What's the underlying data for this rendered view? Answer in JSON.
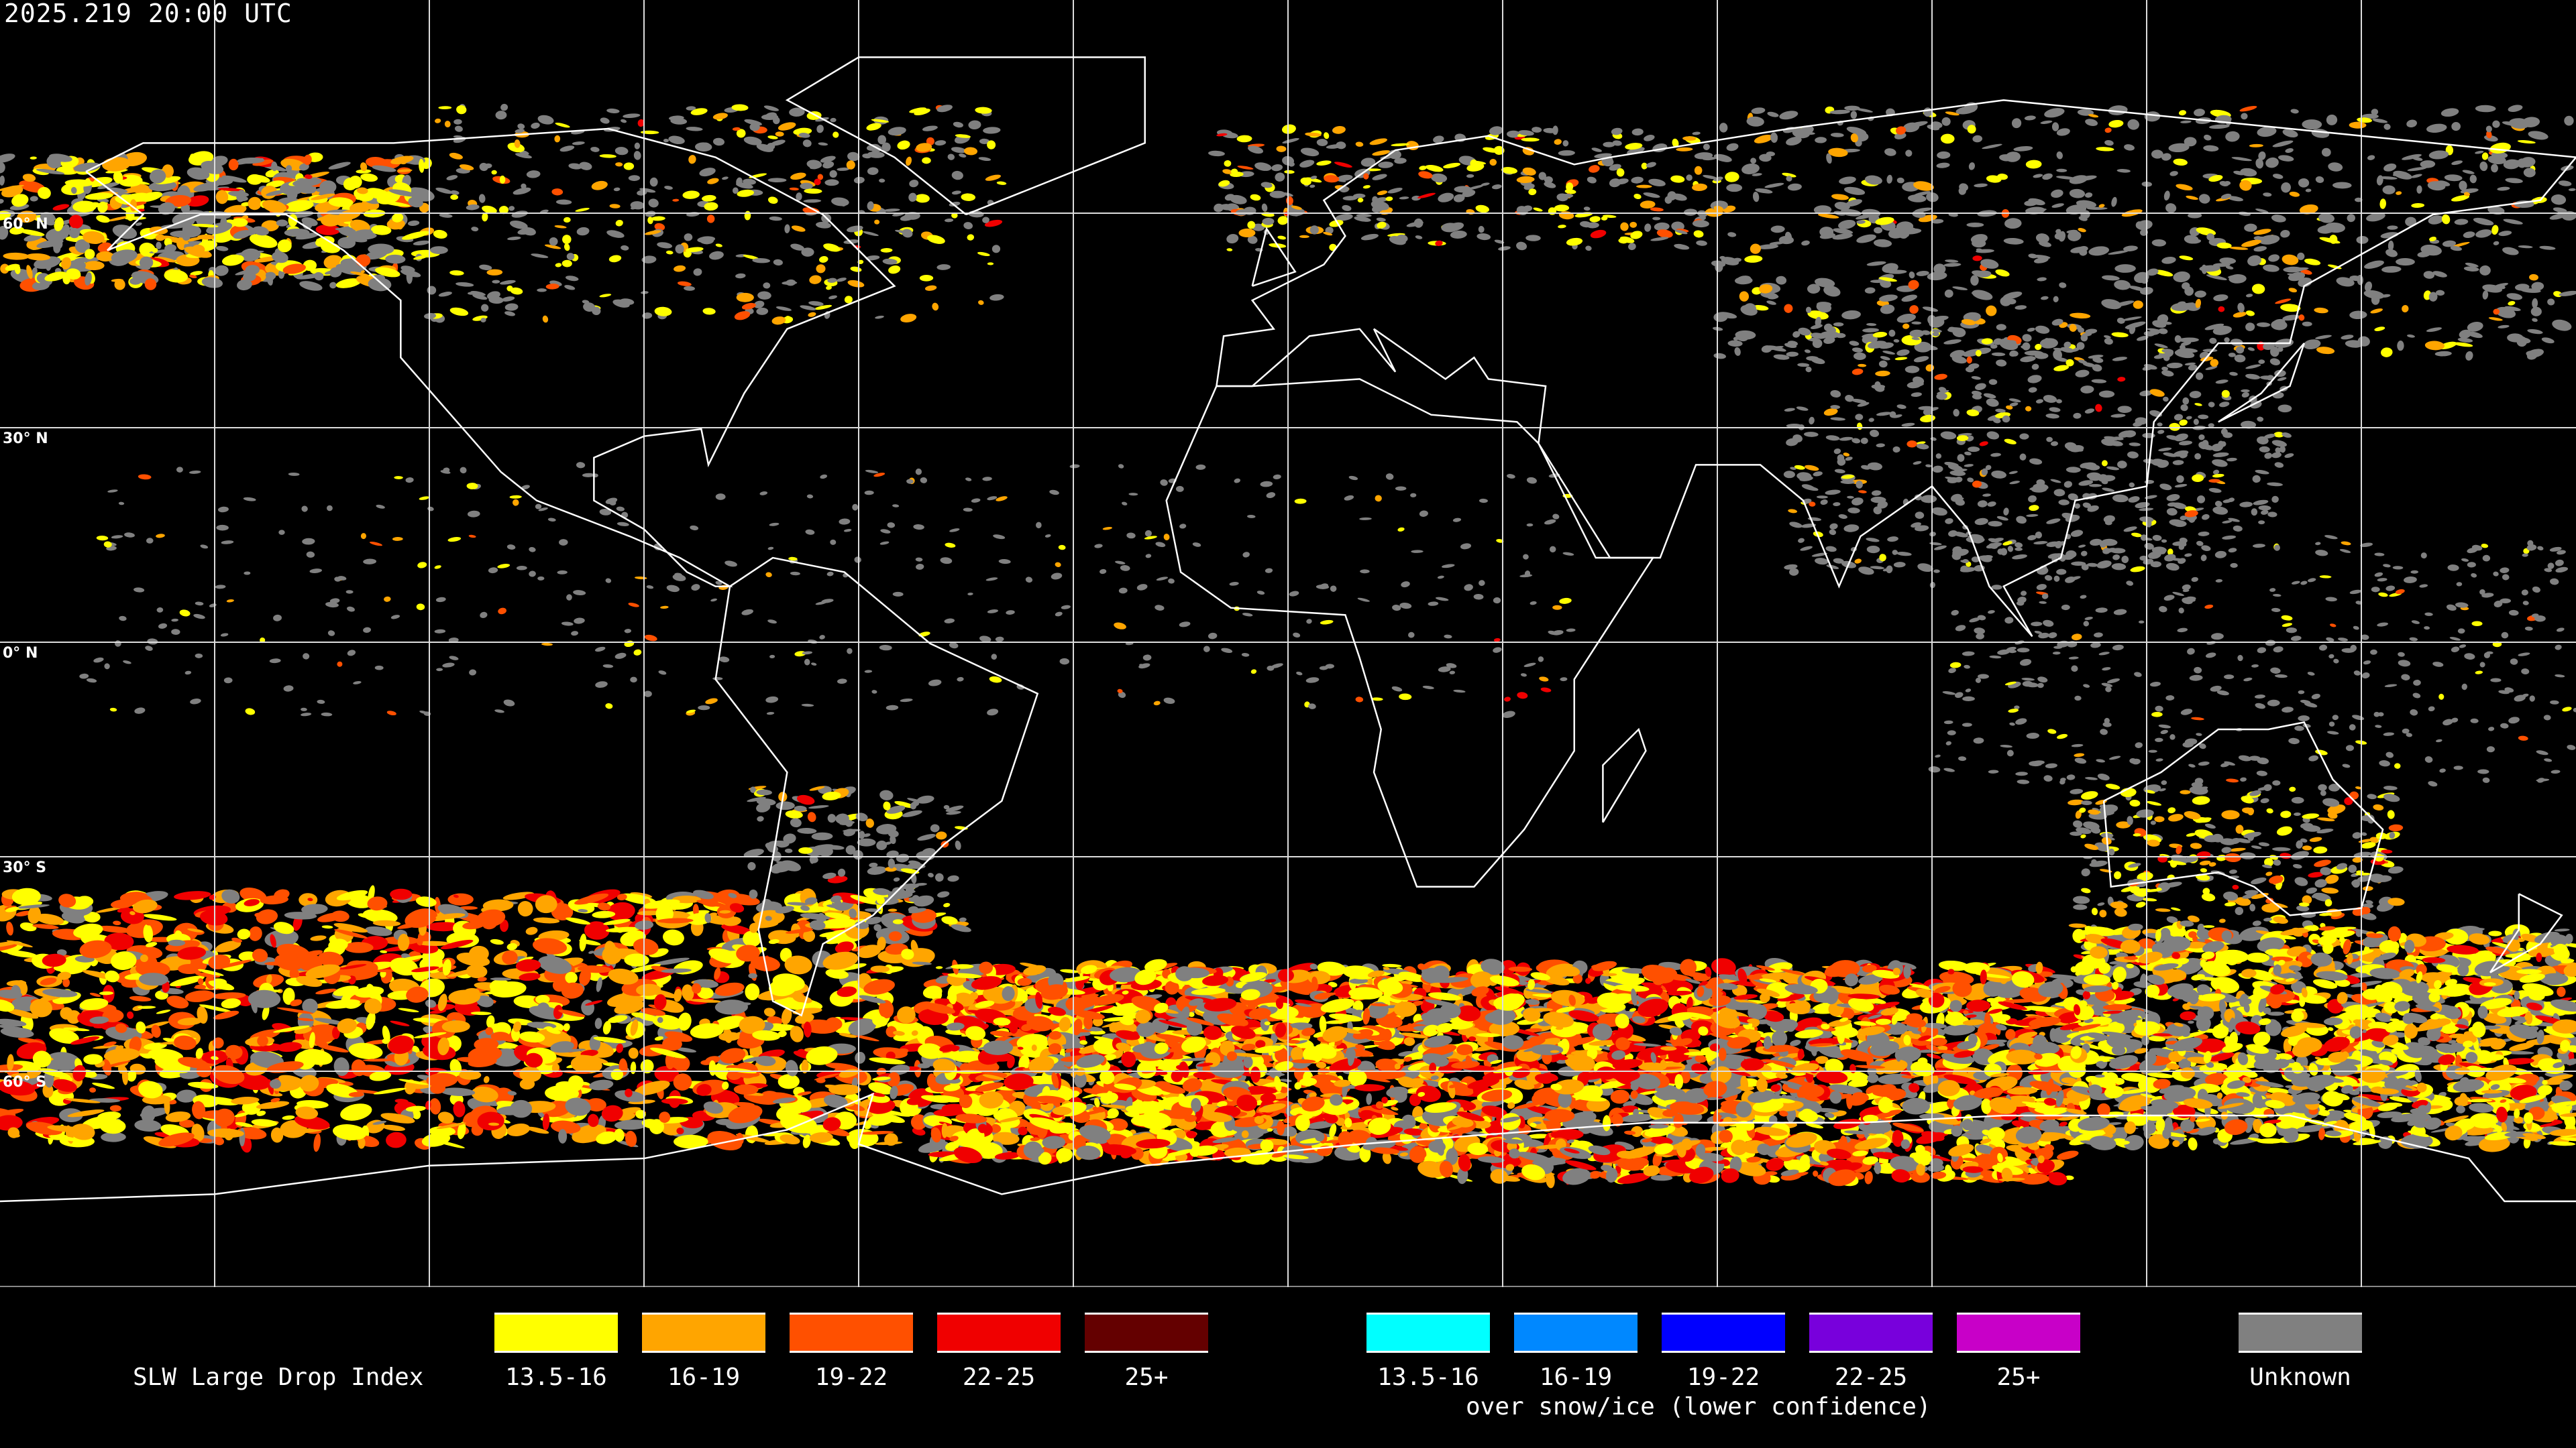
{
  "header": {
    "timestamp": "2025.219 20:00 UTC"
  },
  "map": {
    "projection": "equirectangular",
    "latitude_labels": [
      "60° N",
      "30° N",
      "0° N",
      "30° S",
      "60° S"
    ],
    "graticule_spacing_degrees": 30,
    "background": "#000000",
    "coastline_color": "#ffffff"
  },
  "legend": {
    "title": "SLW Large Drop Index",
    "normal": [
      {
        "label": "13.5-16",
        "color": "#ffff00"
      },
      {
        "label": "16-19",
        "color": "#ffa500"
      },
      {
        "label": "19-22",
        "color": "#ff5000"
      },
      {
        "label": "22-25",
        "color": "#f00000"
      },
      {
        "label": "25+",
        "color": "#640000"
      }
    ],
    "snow_ice": [
      {
        "label": "13.5-16",
        "color": "#00ffff"
      },
      {
        "label": "16-19",
        "color": "#0088ff"
      },
      {
        "label": "19-22",
        "color": "#0000ff"
      },
      {
        "label": "22-25",
        "color": "#7800dc"
      },
      {
        "label": "25+",
        "color": "#c800c8"
      }
    ],
    "snow_ice_caption": "over snow/ice (lower confidence)",
    "unknown": {
      "label": "Unknown",
      "color": "#808080"
    }
  }
}
